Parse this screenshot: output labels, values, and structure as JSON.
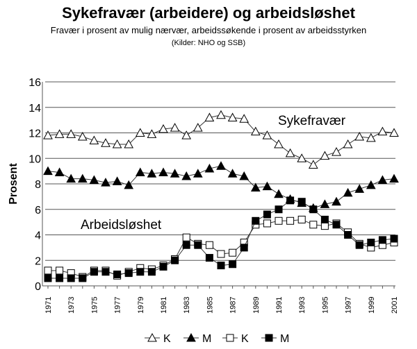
{
  "chart_data": {
    "type": "line",
    "title": "Sykefravær (arbeidere) og arbeidsløshet",
    "subtitle": "Fravær i prosent av mulig nærvær, arbeidssøkende i prosent av arbeidsstyrken",
    "source": "(Kilder: NHO og SSB)",
    "xlabel": "",
    "ylabel": "Prosent",
    "ylim": [
      0,
      16
    ],
    "yticks": [
      0,
      2,
      4,
      6,
      8,
      10,
      12,
      14,
      16
    ],
    "x": [
      1971,
      1972,
      1973,
      1974,
      1975,
      1976,
      1977,
      1978,
      1979,
      1980,
      1981,
      1982,
      1983,
      1984,
      1985,
      1986,
      1987,
      1988,
      1989,
      1990,
      1991,
      1992,
      1993,
      1994,
      1995,
      1996,
      1997,
      1998,
      1999,
      2000,
      2001
    ],
    "annotations": [
      "Sykefravær",
      "Arbeidsløshet"
    ],
    "legend_position": "bottom",
    "series": [
      {
        "name": "K",
        "group": "Sykefravær",
        "marker": "triangle-open",
        "values": [
          11.8,
          11.9,
          11.9,
          11.7,
          11.4,
          11.2,
          11.1,
          11.1,
          12.0,
          11.9,
          12.3,
          12.4,
          11.8,
          12.4,
          13.2,
          13.4,
          13.2,
          13.1,
          12.1,
          11.8,
          11.1,
          10.4,
          10.0,
          9.5,
          10.2,
          10.5,
          11.1,
          11.7,
          11.6,
          12.1,
          12.0
        ]
      },
      {
        "name": "M",
        "group": "Sykefravær",
        "marker": "triangle-filled",
        "values": [
          9.0,
          8.9,
          8.4,
          8.4,
          8.3,
          8.1,
          8.2,
          7.9,
          8.9,
          8.8,
          8.9,
          8.8,
          8.6,
          8.8,
          9.2,
          9.4,
          8.8,
          8.6,
          7.7,
          7.8,
          7.2,
          6.8,
          6.5,
          6.1,
          6.4,
          6.6,
          7.3,
          7.6,
          7.9,
          8.3,
          8.4
        ]
      },
      {
        "name": "K",
        "group": "Arbeidsløshet",
        "marker": "square-open",
        "values": [
          1.2,
          1.2,
          1.0,
          0.7,
          1.2,
          1.2,
          0.8,
          1.1,
          1.4,
          1.3,
          1.6,
          2.1,
          3.8,
          3.3,
          3.2,
          2.5,
          2.6,
          3.4,
          4.8,
          4.9,
          5.1,
          5.1,
          5.2,
          4.8,
          4.7,
          4.9,
          4.2,
          3.3,
          3.0,
          3.2,
          3.4
        ]
      },
      {
        "name": "M",
        "group": "Arbeidsløshet",
        "marker": "square-filled",
        "values": [
          0.6,
          0.6,
          0.6,
          0.6,
          1.1,
          1.1,
          0.9,
          1.0,
          1.1,
          1.1,
          1.5,
          2.0,
          3.2,
          3.2,
          2.2,
          1.6,
          1.7,
          3.0,
          5.1,
          5.6,
          6.0,
          6.7,
          6.6,
          6.0,
          5.2,
          4.8,
          4.0,
          3.2,
          3.4,
          3.6,
          3.7
        ]
      }
    ]
  }
}
